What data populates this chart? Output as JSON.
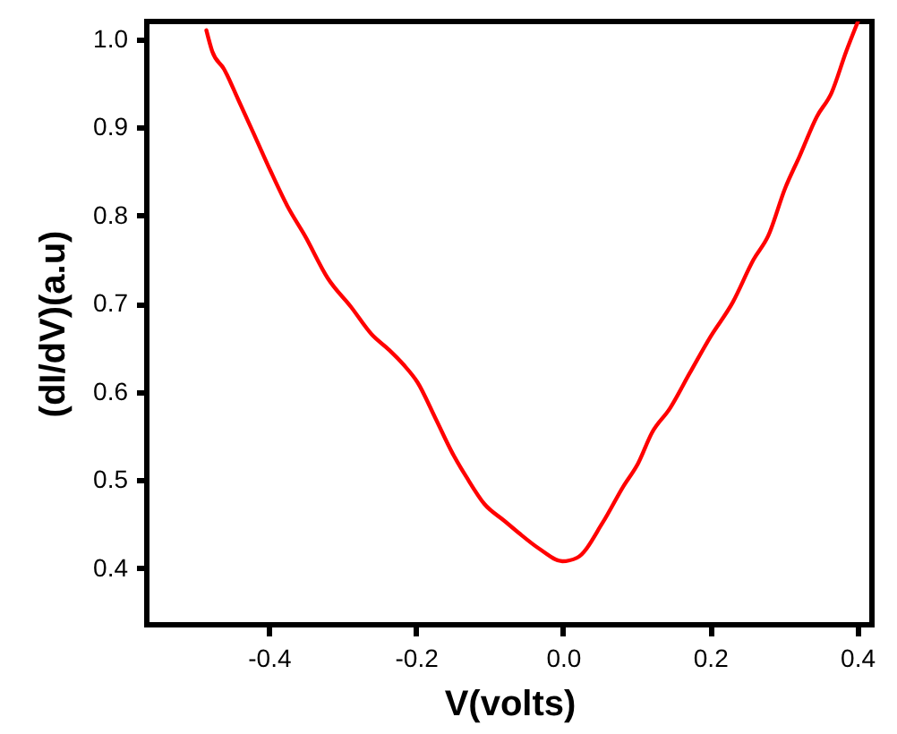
{
  "chart_data": {
    "type": "line",
    "xlabel": "V(volts)",
    "ylabel": "(dI/dV)(a.u)",
    "xlim": [
      -0.566,
      0.42
    ],
    "ylim": [
      0.336,
      1.02
    ],
    "xticks": [
      -0.4,
      -0.2,
      {
        "value": 0,
        "label": "0.0"
      },
      0.2,
      0.4
    ],
    "yticks": [
      0.4,
      0.5,
      0.6,
      0.7,
      0.8,
      0.9,
      {
        "value": 1,
        "label": "1.0"
      }
    ],
    "grid": false,
    "marker": "none",
    "line_style": "solid",
    "series": [
      {
        "color": "#ff0000",
        "x": [
          -0.485,
          -0.477,
          -0.461,
          -0.442,
          -0.418,
          -0.398,
          -0.375,
          -0.351,
          -0.32,
          -0.288,
          -0.26,
          -0.237,
          -0.217,
          -0.198,
          -0.174,
          -0.15,
          -0.131,
          -0.107,
          -0.08,
          -0.06,
          -0.032,
          -0.001,
          0.019,
          0.054,
          0.082,
          0.102,
          0.121,
          0.145,
          0.172,
          0.2,
          0.231,
          0.259,
          0.279,
          0.302,
          0.322,
          0.345,
          0.365,
          0.385,
          0.401
        ],
        "values": [
          1.01,
          0.986,
          0.966,
          0.932,
          0.888,
          0.851,
          0.811,
          0.777,
          0.729,
          0.696,
          0.665,
          0.648,
          0.631,
          0.611,
          0.571,
          0.53,
          0.503,
          0.473,
          0.454,
          0.44,
          0.422,
          0.408,
          0.412,
          0.452,
          0.493,
          0.519,
          0.554,
          0.581,
          0.621,
          0.662,
          0.702,
          0.75,
          0.777,
          0.831,
          0.868,
          0.912,
          0.939,
          0.986,
          1.02
        ]
      }
    ]
  }
}
